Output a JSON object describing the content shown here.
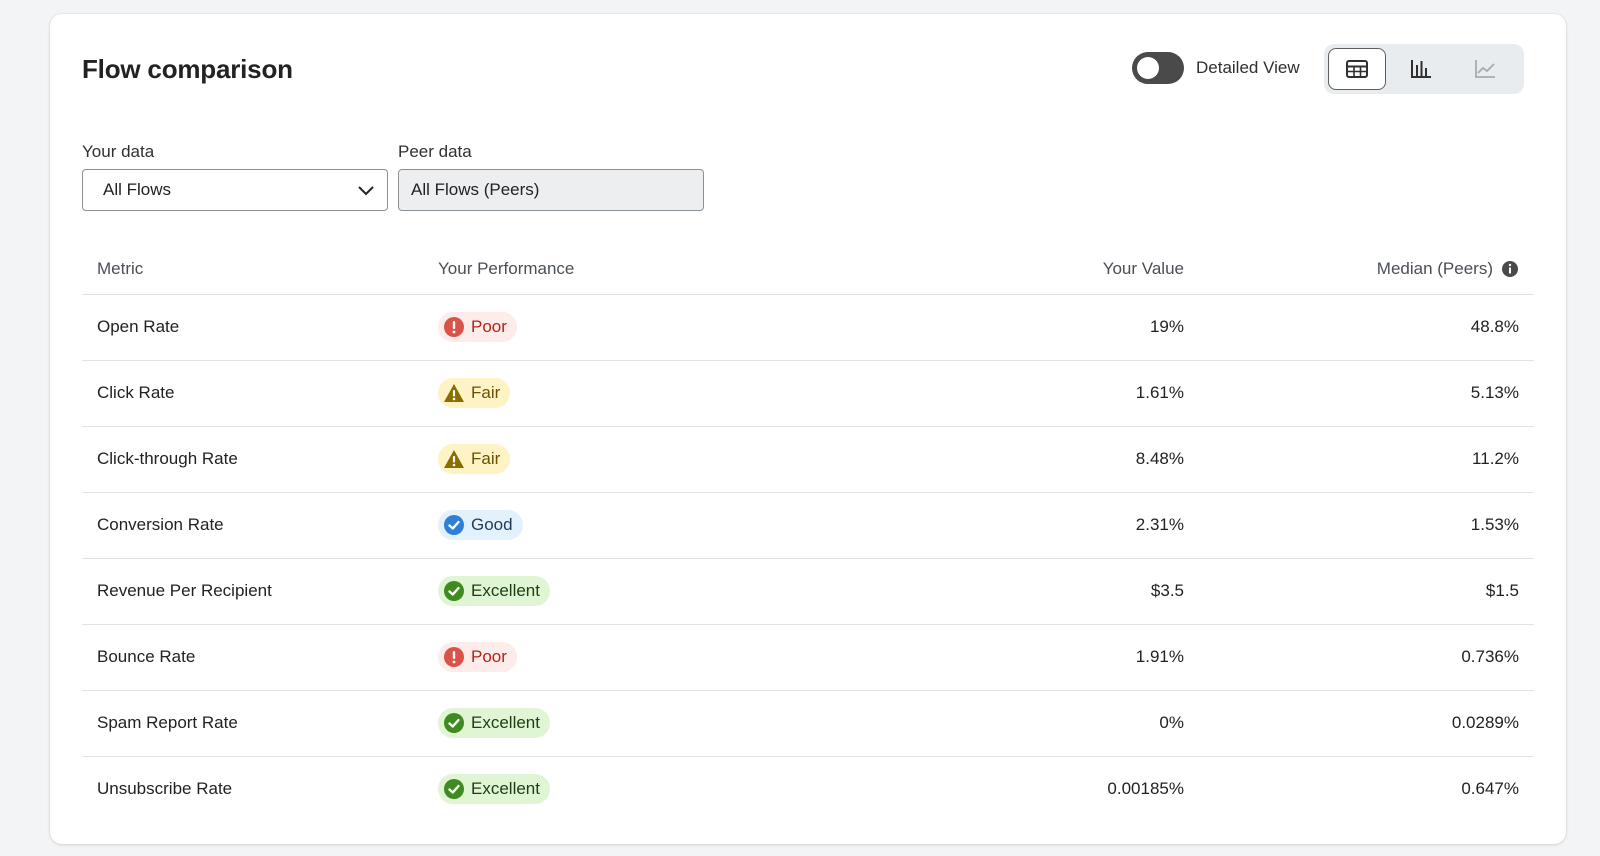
{
  "header": {
    "title": "Flow comparison",
    "detailed_view_label": "Detailed View",
    "detailed_view_on": false
  },
  "view_switcher": {
    "options": [
      {
        "icon": "table-icon",
        "selected": true
      },
      {
        "icon": "bar-chart-icon",
        "selected": false
      },
      {
        "icon": "line-chart-icon",
        "selected": false,
        "disabled": true
      }
    ]
  },
  "filters": {
    "your_data_label": "Your data",
    "your_data_value": "All Flows",
    "peer_data_label": "Peer data",
    "peer_data_value": "All Flows (Peers)"
  },
  "table": {
    "columns": {
      "metric": "Metric",
      "performance": "Your Performance",
      "your_value": "Your Value",
      "median": "Median (Peers)"
    },
    "rows": [
      {
        "metric": "Open Rate",
        "performance": "Poor",
        "your_value": "19%",
        "median": "48.8%"
      },
      {
        "metric": "Click Rate",
        "performance": "Fair",
        "your_value": "1.61%",
        "median": "5.13%"
      },
      {
        "metric": "Click-through Rate",
        "performance": "Fair",
        "your_value": "8.48%",
        "median": "11.2%"
      },
      {
        "metric": "Conversion Rate",
        "performance": "Good",
        "your_value": "2.31%",
        "median": "1.53%"
      },
      {
        "metric": "Revenue Per Recipient",
        "performance": "Excellent",
        "your_value": "$3.5",
        "median": "$1.5"
      },
      {
        "metric": "Bounce Rate",
        "performance": "Poor",
        "your_value": "1.91%",
        "median": "0.736%"
      },
      {
        "metric": "Spam Report Rate",
        "performance": "Excellent",
        "your_value": "0%",
        "median": "0.0289%"
      },
      {
        "metric": "Unsubscribe Rate",
        "performance": "Excellent",
        "your_value": "0.00185%",
        "median": "0.647%"
      }
    ]
  },
  "badge_styles": {
    "Poor": {
      "bg": "#fdecea",
      "fg": "#b42318",
      "icon_color": "#d9534a",
      "icon": "alert-circle-icon"
    },
    "Fair": {
      "bg": "#fdf3c4",
      "fg": "#6b5200",
      "icon_color": "#8a6d00",
      "icon": "warning-triangle-icon"
    },
    "Good": {
      "bg": "#e3f1fd",
      "fg": "#1f3a5c",
      "icon_color": "#2e7fd6",
      "icon": "check-circle-icon"
    },
    "Excellent": {
      "bg": "#dff5d3",
      "fg": "#1f3d12",
      "icon_color": "#3f8a21",
      "icon": "check-circle-icon"
    }
  }
}
